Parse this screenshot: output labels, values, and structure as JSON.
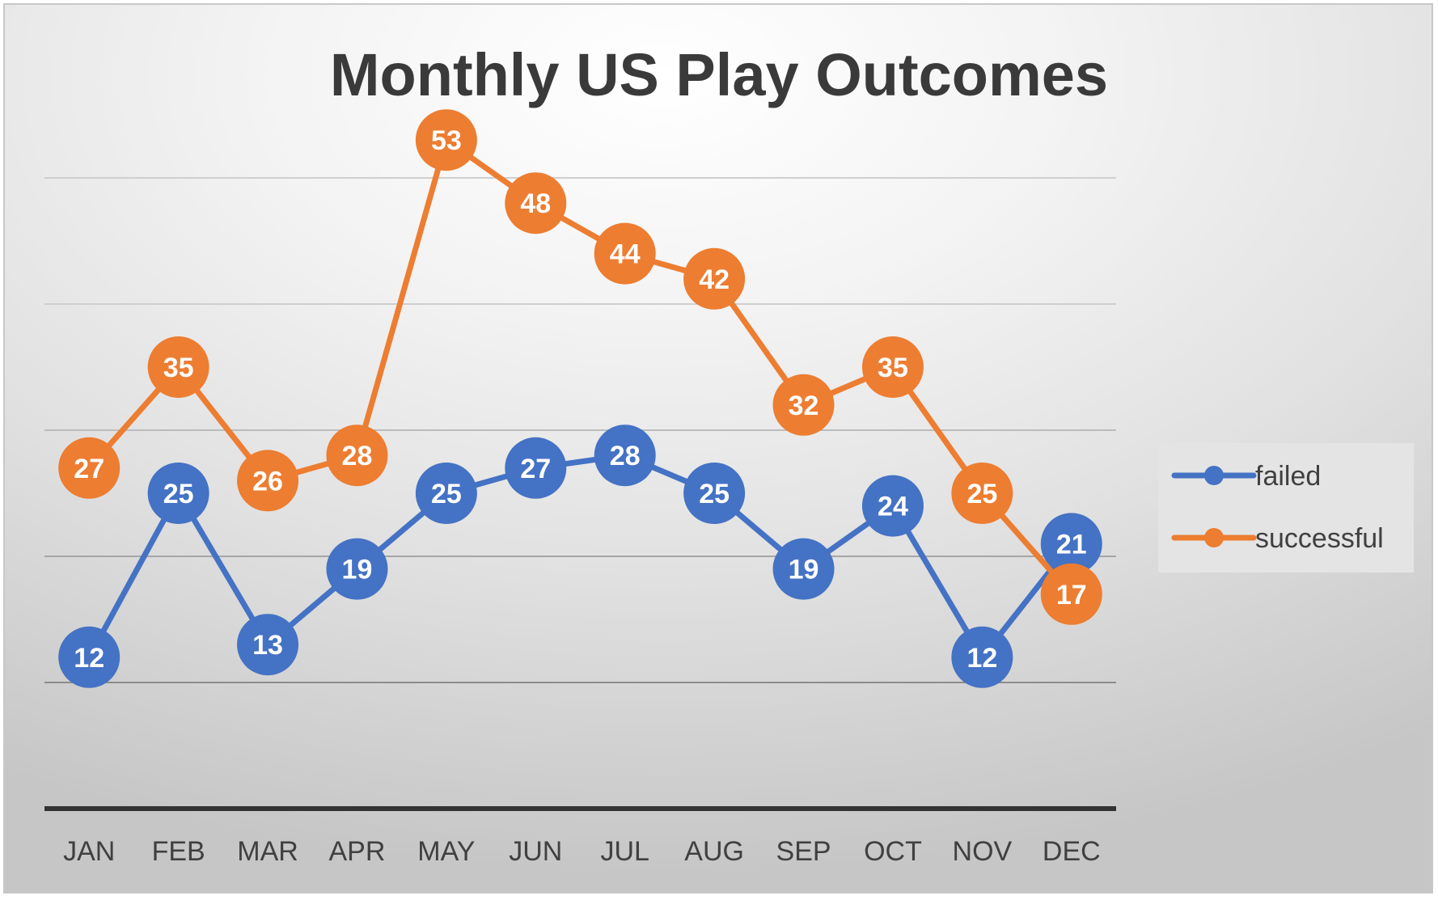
{
  "chart_data": {
    "type": "line",
    "title": "Monthly US Play Outcomes",
    "categories": [
      "JAN",
      "FEB",
      "MAR",
      "APR",
      "MAY",
      "JUN",
      "JUL",
      "AUG",
      "SEP",
      "OCT",
      "NOV",
      "DEC"
    ],
    "series": [
      {
        "name": "failed",
        "color": "#4472C4",
        "values": [
          12,
          25,
          13,
          19,
          25,
          27,
          28,
          25,
          19,
          24,
          12,
          21
        ]
      },
      {
        "name": "successful",
        "color": "#ED7D31",
        "values": [
          27,
          35,
          26,
          28,
          53,
          48,
          44,
          42,
          32,
          35,
          25,
          17
        ]
      }
    ],
    "ylim": [
      0,
      60
    ],
    "y_gridline_step": 10,
    "y_tick_labels_shown": false,
    "data_labels_shown": true,
    "grid": true,
    "legend_position": "right"
  }
}
